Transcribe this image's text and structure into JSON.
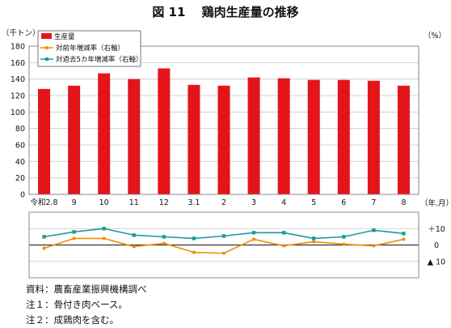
{
  "chart_data": {
    "type": "bar",
    "title": "図 11　 鶏肉生産量の推移",
    "left_unit": "（千トン）",
    "right_unit": "（%）",
    "x_unit": "（年.月）",
    "categories": [
      "令和2.8",
      "9",
      "10",
      "11",
      "12",
      "3.1",
      "2",
      "3",
      "4",
      "5",
      "6",
      "7",
      "8"
    ],
    "ylim": [
      0,
      180
    ],
    "yticks": [
      0,
      20,
      40,
      60,
      80,
      100,
      120,
      140,
      160,
      180
    ],
    "series": [
      {
        "name": "生産量",
        "color": "#e3151b",
        "values": [
          128,
          132,
          147,
          140,
          153,
          133,
          132,
          142,
          141,
          139,
          139,
          138,
          132
        ]
      },
      {
        "name": "対前年増減率（右軸）",
        "color": "#f08c00",
        "axis": "right",
        "values": [
          -2.0,
          4.0,
          4.0,
          -1.0,
          1.0,
          -4.5,
          -5.0,
          3.5,
          -0.5,
          2.0,
          0.5,
          -0.5,
          3.5
        ]
      },
      {
        "name": "対過去5カ年増減率（右軸）",
        "color": "#1a9a98",
        "axis": "right",
        "values": [
          5.0,
          8.0,
          10.0,
          6.0,
          5.0,
          4.0,
          5.5,
          7.5,
          7.5,
          4.0,
          5.0,
          9.0,
          7.0
        ]
      }
    ],
    "right_ylim": [
      -20,
      20
    ],
    "right_tick_labels": [
      {
        "value": 10,
        "label": "＋10"
      },
      {
        "value": 0,
        "label": "0"
      },
      {
        "value": -10,
        "label": "▲ 10"
      }
    ],
    "grid": true,
    "legend_position": "top-left"
  },
  "notes": [
    "資料：農畜産業振興機構調べ",
    "注１：骨付き肉ベース。",
    "注２：成鶏肉を含む。"
  ]
}
